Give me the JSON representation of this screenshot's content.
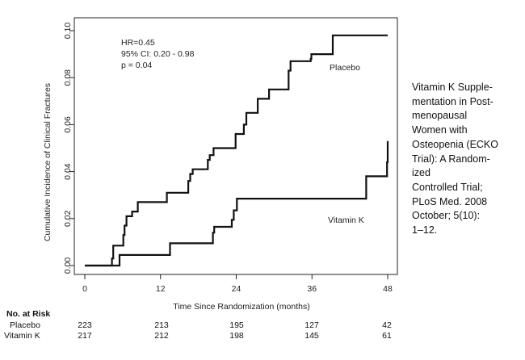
{
  "chart_data": {
    "type": "line",
    "step": true,
    "xlabel": "Time Since Randomization (months)",
    "ylabel": "Cumulative Incidence of Clinical Fractures",
    "xlim": [
      0,
      48
    ],
    "ylim": [
      0,
      0.1
    ],
    "xticks": [
      "0",
      "12",
      "24",
      "36",
      "48"
    ],
    "yticks": [
      "0.00",
      "0.02",
      "0.04",
      "0.06",
      "0.08",
      "0.10"
    ],
    "annotation": [
      "HR=0.45",
      "95% CI: 0.20 - 0.98",
      "p = 0.04"
    ],
    "series": [
      {
        "name": "Placebo",
        "label": "Placebo",
        "x": [
          0,
          4.3,
          4.5,
          6.1,
          6.3,
          6.6,
          7.5,
          8.4,
          13,
          16.4,
          16.7,
          17.1,
          19.5,
          19.8,
          20.4,
          23.9,
          24.2,
          25.2,
          25.6,
          27.4,
          29.2,
          32.3,
          32.6,
          35.8,
          35.9,
          39.3,
          48
        ],
        "y": [
          0,
          0.003,
          0.0085,
          0.013,
          0.017,
          0.021,
          0.023,
          0.027,
          0.031,
          0.036,
          0.039,
          0.041,
          0.045,
          0.047,
          0.05,
          0.056,
          0.056,
          0.06,
          0.065,
          0.071,
          0.075,
          0.083,
          0.087,
          0.088,
          0.09,
          0.098,
          0.098
        ]
      },
      {
        "name": "Vitamin K",
        "label": "Vitamin K",
        "x": [
          0,
          5.5,
          13.5,
          20.3,
          20.5,
          23.3,
          23.6,
          24.1,
          44.6,
          47.9,
          48
        ],
        "y": [
          0,
          0.0045,
          0.0095,
          0.014,
          0.0165,
          0.0195,
          0.0235,
          0.0285,
          0.038,
          0.044,
          0.053
        ]
      }
    ]
  },
  "caption": [
    "Vitamin K Supple-",
    "mentation in Post-",
    "menopausal",
    "Women with",
    "Osteopenia (ECKO",
    "Trial): A Random-",
    "ized",
    "Controlled Trial;",
    "PLoS Med. 2008",
    "October; 5(10):",
    "1–12."
  ],
  "risk_table": {
    "title": "No. at Risk",
    "rows": [
      {
        "label": "Placebo",
        "values": [
          "223",
          "213",
          "195",
          "127",
          "42"
        ]
      },
      {
        "label": "Vitamin K",
        "values": [
          "217",
          "212",
          "198",
          "145",
          "61"
        ]
      }
    ]
  },
  "colors": {
    "line": "#111111",
    "axis": "#222222"
  }
}
